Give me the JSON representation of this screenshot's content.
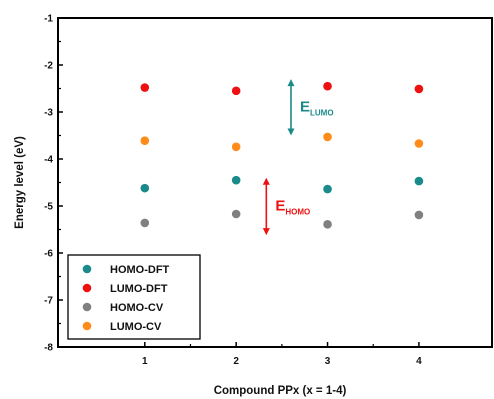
{
  "chart_data": {
    "type": "scatter",
    "xlabel": "Compound PPx (x = 1-4)",
    "ylabel": "Energy level (eV)",
    "xlim": [
      0.05,
      4.8
    ],
    "ylim": [
      -8,
      -1
    ],
    "xticks": [
      1,
      2,
      3,
      4
    ],
    "yticks": [
      -8,
      -7,
      -6,
      -5,
      -4,
      -3,
      -2,
      -1
    ],
    "grid": false,
    "legend_position": "bottom-left",
    "series": [
      {
        "name": "HOMO-DFT",
        "color": "#1a8a8a",
        "x": [
          1,
          2,
          3,
          4
        ],
        "y": [
          -4.62,
          -4.45,
          -4.64,
          -4.47
        ]
      },
      {
        "name": "LUMO-DFT",
        "color": "#ee1111",
        "x": [
          1,
          2,
          3,
          4
        ],
        "y": [
          -2.48,
          -2.55,
          -2.45,
          -2.51
        ]
      },
      {
        "name": "HOMO-CV",
        "color": "#808080",
        "x": [
          1,
          2,
          3,
          4
        ],
        "y": [
          -5.36,
          -5.17,
          -5.39,
          -5.19
        ]
      },
      {
        "name": "LUMO-CV",
        "color": "#ff8c1a",
        "x": [
          1,
          2,
          3,
          4
        ],
        "y": [
          -3.61,
          -3.74,
          -3.53,
          -3.67
        ]
      }
    ],
    "annotations": [
      {
        "label": "E",
        "sub": "LUMO",
        "color": "#1a8a8a",
        "x": 2.6,
        "y_from": -2.3,
        "y_to": -3.5
      },
      {
        "label": "E",
        "sub": "HOMO",
        "color": "#ee1111",
        "x": 2.33,
        "y_from": -4.4,
        "y_to": -5.62
      }
    ]
  }
}
